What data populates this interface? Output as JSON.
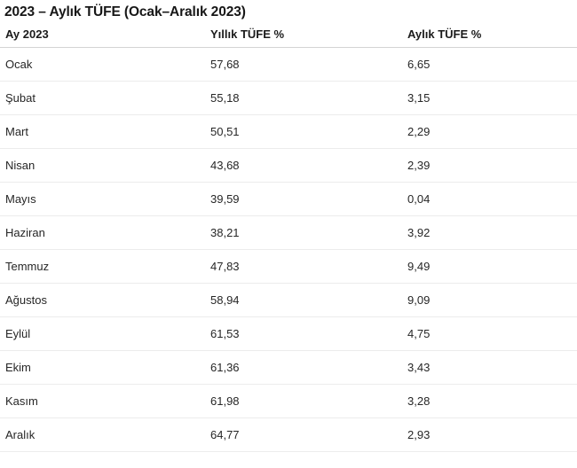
{
  "title": "2023 – Aylık TÜFE (Ocak–Aralık 2023)",
  "table": {
    "columns": [
      "Ay 2023",
      "Yıllık TÜFE %",
      "Aylık TÜFE %"
    ],
    "rows": [
      {
        "month": "Ocak",
        "yearly": "57,68",
        "monthly": "6,65"
      },
      {
        "month": "Şubat",
        "yearly": "55,18",
        "monthly": "3,15"
      },
      {
        "month": "Mart",
        "yearly": "50,51",
        "monthly": "2,29"
      },
      {
        "month": "Nisan",
        "yearly": "43,68",
        "monthly": "2,39"
      },
      {
        "month": "Mayıs",
        "yearly": "39,59",
        "monthly": "0,04"
      },
      {
        "month": "Haziran",
        "yearly": "38,21",
        "monthly": "3,92"
      },
      {
        "month": "Temmuz",
        "yearly": "47,83",
        "monthly": "9,49"
      },
      {
        "month": "Ağustos",
        "yearly": "58,94",
        "monthly": "9,09"
      },
      {
        "month": "Eylül",
        "yearly": "61,53",
        "monthly": "4,75"
      },
      {
        "month": "Ekim",
        "yearly": "61,36",
        "monthly": "3,43"
      },
      {
        "month": "Kasım",
        "yearly": "61,98",
        "monthly": "3,28"
      },
      {
        "month": "Aralık",
        "yearly": "64,77",
        "monthly": "2,93"
      }
    ]
  },
  "colors": {
    "background": "#ffffff",
    "title_text": "#171717",
    "header_text": "#1b1b1b",
    "cell_text": "#262626",
    "header_border": "#d4d4d4",
    "row_border": "#ececec"
  },
  "chart_data": {
    "type": "table",
    "title": "2023 – Aylık TÜFE (Ocak–Aralık 2023)",
    "categories": [
      "Ocak",
      "Şubat",
      "Mart",
      "Nisan",
      "Mayıs",
      "Haziran",
      "Temmuz",
      "Ağustos",
      "Eylül",
      "Ekim",
      "Kasım",
      "Aralık"
    ],
    "series": [
      {
        "name": "Yıllık TÜFE %",
        "values": [
          57.68,
          55.18,
          50.51,
          43.68,
          39.59,
          38.21,
          47.83,
          58.94,
          61.53,
          61.36,
          61.98,
          64.77
        ]
      },
      {
        "name": "Aylık TÜFE %",
        "values": [
          6.65,
          3.15,
          2.29,
          2.39,
          0.04,
          3.92,
          9.49,
          9.09,
          4.75,
          3.43,
          3.28,
          2.93
        ]
      }
    ],
    "xlabel": "Ay 2023",
    "ylabel": ""
  }
}
